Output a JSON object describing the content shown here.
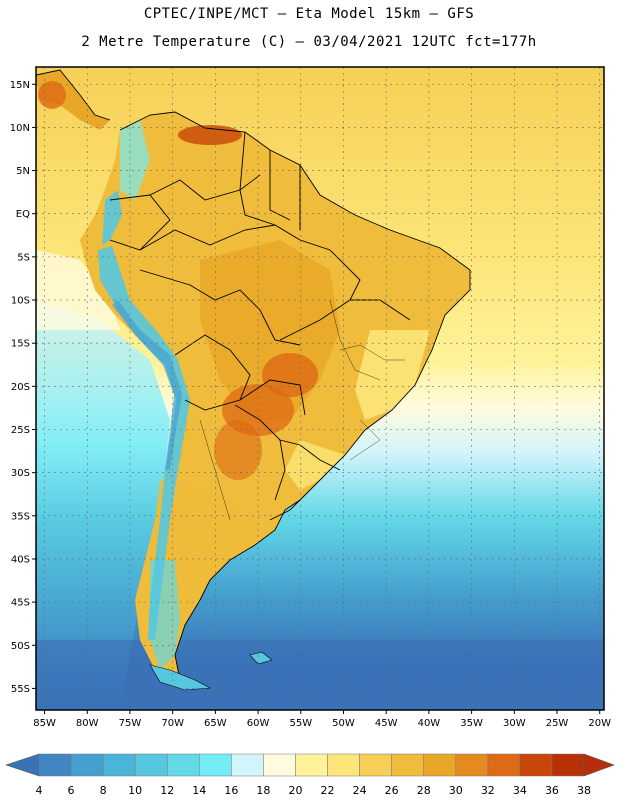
{
  "header": {
    "line1": "CPTEC/INPE/MCT –  Eta Model 15km – GFS",
    "line2": "2 Metre Temperature (C) – 03/04/2021 12UTC fct=177h"
  },
  "map": {
    "lat_labels": [
      "15N",
      "10N",
      "5N",
      "EQ",
      "5S",
      "10S",
      "15S",
      "20S",
      "25S",
      "30S",
      "35S",
      "40S",
      "45S",
      "50S",
      "55S"
    ],
    "lon_labels": [
      "85W",
      "80W",
      "75W",
      "70W",
      "65W",
      "60W",
      "55W",
      "50W",
      "45W",
      "40W",
      "35W",
      "30W",
      "25W",
      "20W"
    ],
    "gridlines": true,
    "extent": {
      "lon_min": -86,
      "lon_max": -19.5,
      "lat_min": -57.5,
      "lat_max": 17
    }
  },
  "colorbar": {
    "ticks": [
      "4",
      "6",
      "8",
      "10",
      "12",
      "14",
      "16",
      "18",
      "20",
      "22",
      "24",
      "26",
      "28",
      "30",
      "32",
      "34",
      "36",
      "38"
    ],
    "colors": [
      "#3a72b7",
      "#3f86c3",
      "#45a0cf",
      "#4ab5d8",
      "#56c7df",
      "#63d8e7",
      "#73ecf6",
      "#d2f4fb",
      "#fffbdf",
      "#fef39a",
      "#fde679",
      "#f6d056",
      "#efbc3b",
      "#e9a728",
      "#e58a20",
      "#dd6a14",
      "#c84608",
      "#b83106",
      "#b82e0a"
    ]
  }
}
